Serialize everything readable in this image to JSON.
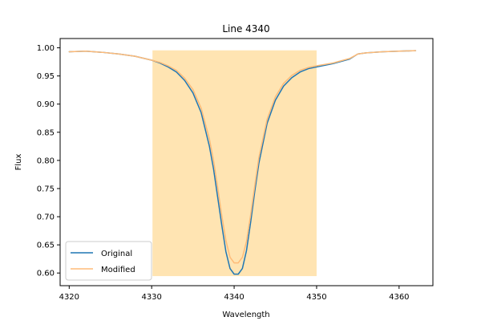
{
  "chart_data": {
    "type": "line",
    "title": "Line 4340",
    "xlabel": "Wavelength",
    "ylabel": "Flux",
    "xlim": [
      4318.9,
      4364.1
    ],
    "ylim": [
      0.5775,
      1.0165
    ],
    "xticks": [
      4320,
      4330,
      4340,
      4350,
      4360
    ],
    "yticks": [
      0.6,
      0.65,
      0.7,
      0.75,
      0.8,
      0.85,
      0.9,
      0.95,
      1.0
    ],
    "xtick_labels": [
      "4320",
      "4330",
      "4340",
      "4350",
      "4360"
    ],
    "ytick_labels": [
      "0.60",
      "0.65",
      "0.70",
      "0.75",
      "0.80",
      "0.85",
      "0.90",
      "0.95",
      "1.00"
    ],
    "grid": false,
    "legend_position": "lower-left",
    "highlight_region": {
      "x": [
        4330.1,
        4350.0
      ],
      "y": [
        0.5945,
        0.9955
      ],
      "color": "#ffa500",
      "opacity": 0.3
    },
    "series": [
      {
        "name": "Original",
        "color": "#1f77b4",
        "x": [
          4320,
          4322,
          4324,
          4326,
          4328,
          4330,
          4331,
          4332,
          4333,
          4334,
          4335,
          4336,
          4337,
          4337.5,
          4338,
          4338.5,
          4339,
          4339.5,
          4340,
          4340.5,
          4341,
          4341.5,
          4342,
          4342.5,
          4343,
          4344,
          4345,
          4346,
          4347,
          4348,
          4349,
          4350,
          4352,
          4354,
          4355,
          4356,
          4358,
          4360,
          4362
        ],
        "values": [
          0.993,
          0.994,
          0.992,
          0.989,
          0.985,
          0.978,
          0.973,
          0.966,
          0.957,
          0.942,
          0.92,
          0.885,
          0.825,
          0.785,
          0.735,
          0.685,
          0.638,
          0.608,
          0.598,
          0.598,
          0.608,
          0.64,
          0.69,
          0.745,
          0.795,
          0.866,
          0.907,
          0.932,
          0.947,
          0.957,
          0.963,
          0.966,
          0.972,
          0.98,
          0.989,
          0.991,
          0.993,
          0.994,
          0.995
        ]
      },
      {
        "name": "Modified",
        "color": "#ffbb78",
        "x": [
          4320,
          4322,
          4324,
          4326,
          4328,
          4330,
          4331,
          4332,
          4333,
          4334,
          4335,
          4336,
          4337,
          4337.5,
          4338,
          4338.5,
          4339,
          4339.5,
          4340,
          4340.5,
          4341,
          4341.5,
          4342,
          4342.5,
          4343,
          4344,
          4345,
          4346,
          4347,
          4348,
          4349,
          4350,
          4352,
          4354,
          4355,
          4356,
          4358,
          4360,
          4362
        ],
        "values": [
          0.993,
          0.994,
          0.992,
          0.989,
          0.985,
          0.978,
          0.974,
          0.968,
          0.96,
          0.946,
          0.926,
          0.893,
          0.838,
          0.8,
          0.752,
          0.702,
          0.658,
          0.628,
          0.618,
          0.618,
          0.628,
          0.656,
          0.703,
          0.755,
          0.805,
          0.873,
          0.913,
          0.937,
          0.951,
          0.96,
          0.965,
          0.968,
          0.973,
          0.981,
          0.989,
          0.991,
          0.993,
          0.994,
          0.995
        ]
      }
    ]
  }
}
